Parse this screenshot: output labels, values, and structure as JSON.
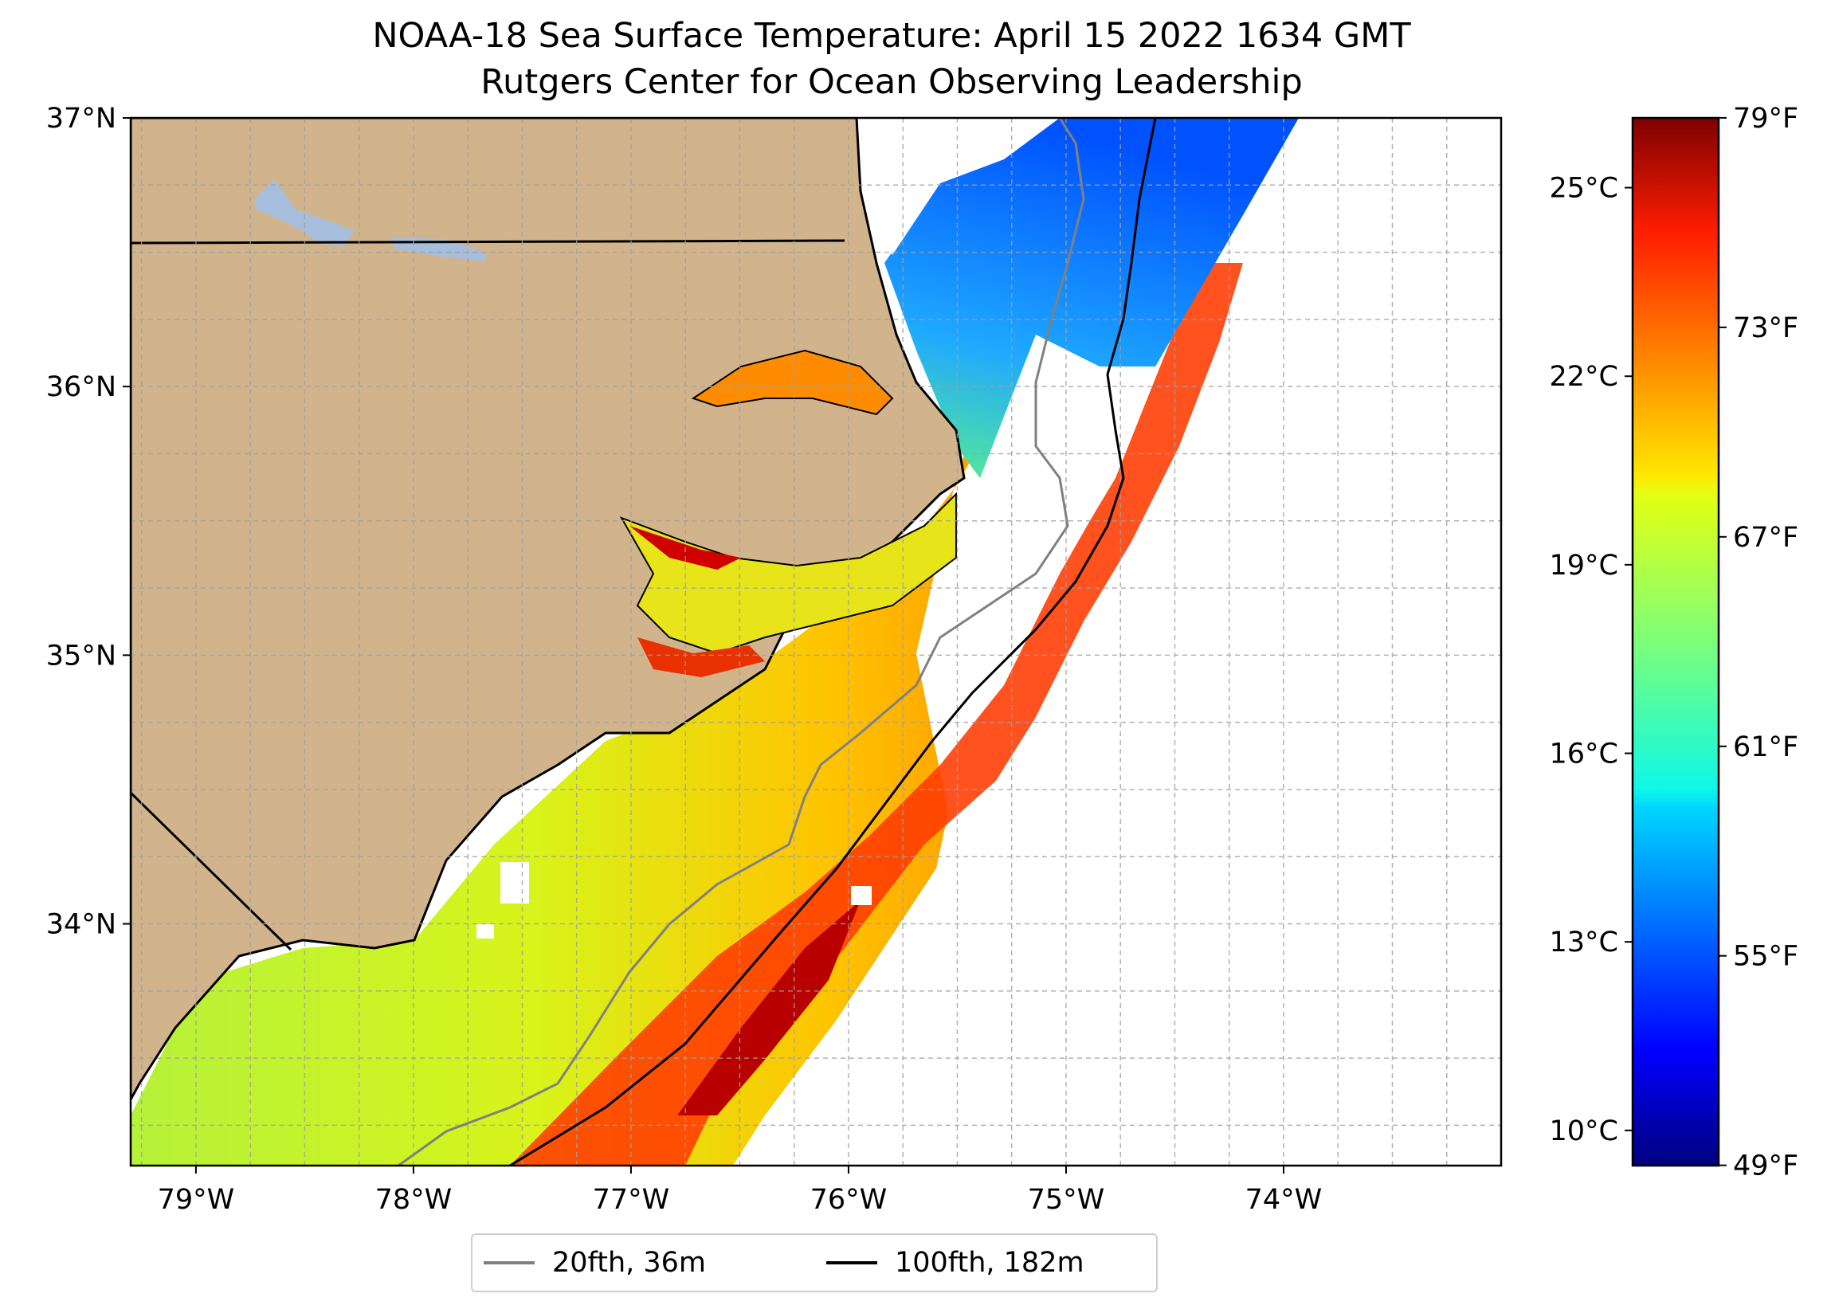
{
  "title": "NOAA-18 Sea Surface Temperature: April 15 2022 1634 GMT",
  "subtitle": "Rutgers Center for Ocean Observing Leadership",
  "map": {
    "lon_range": [
      -79.3,
      -73.0
    ],
    "lat_range": [
      33.1,
      37.0
    ],
    "lon_ticks": [
      {
        "value": -79,
        "label": "79°W"
      },
      {
        "value": -78,
        "label": "78°W"
      },
      {
        "value": -77,
        "label": "77°W"
      },
      {
        "value": -76,
        "label": "76°W"
      },
      {
        "value": -75,
        "label": "75°W"
      },
      {
        "value": -74,
        "label": "74°W"
      }
    ],
    "lat_ticks": [
      {
        "value": 37,
        "label": "37°N"
      },
      {
        "value": 36,
        "label": "36°N"
      },
      {
        "value": 35,
        "label": "35°N"
      },
      {
        "value": 34,
        "label": "34°N"
      }
    ],
    "gridlines": true,
    "land_color": "#d2b48c",
    "lake_color": "#a6bddb"
  },
  "colorbar": {
    "colormap": "jet",
    "range_c": [
      9.44,
      26.11
    ],
    "celsius_ticks": [
      {
        "value": 25,
        "label": "25°C"
      },
      {
        "value": 22,
        "label": "22°C"
      },
      {
        "value": 19,
        "label": "19°C"
      },
      {
        "value": 16,
        "label": "16°C"
      },
      {
        "value": 13,
        "label": "13°C"
      },
      {
        "value": 10,
        "label": "10°C"
      }
    ],
    "fahrenheit_ticks": [
      {
        "value": 79,
        "label": "79°F"
      },
      {
        "value": 73,
        "label": "73°F"
      },
      {
        "value": 67,
        "label": "67°F"
      },
      {
        "value": 61,
        "label": "61°F"
      },
      {
        "value": 55,
        "label": "55°F"
      },
      {
        "value": 49,
        "label": "49°F"
      }
    ]
  },
  "legend": [
    {
      "label": "20fth, 36m",
      "color": "#808080"
    },
    {
      "label": "100fth, 182m",
      "color": "#000000"
    }
  ]
}
